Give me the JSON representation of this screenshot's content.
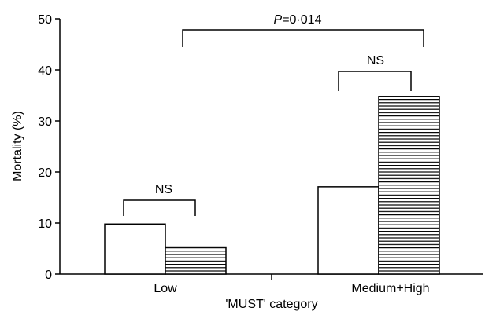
{
  "chart_data": {
    "type": "bar",
    "xlabel": "'MUST' category",
    "ylabel": "Mortality (%)",
    "ylim": [
      0,
      50
    ],
    "yticks": [
      "0",
      "10",
      "20",
      "30",
      "40",
      "50"
    ],
    "categories": [
      "Low",
      "Medium+High"
    ],
    "series": [
      {
        "values": [
          9.8,
          17.1
        ],
        "fill": "white"
      },
      {
        "values": [
          5.3,
          34.8
        ],
        "fill": "horizontal-stripes"
      }
    ],
    "grid": false,
    "annotations": [
      {
        "text": "NS",
        "between": "Low series"
      },
      {
        "text": "NS",
        "between": "Medium+High series"
      },
      {
        "text_prefix": "P",
        "text_suffix": "=0·014",
        "between": "categories"
      }
    ]
  }
}
